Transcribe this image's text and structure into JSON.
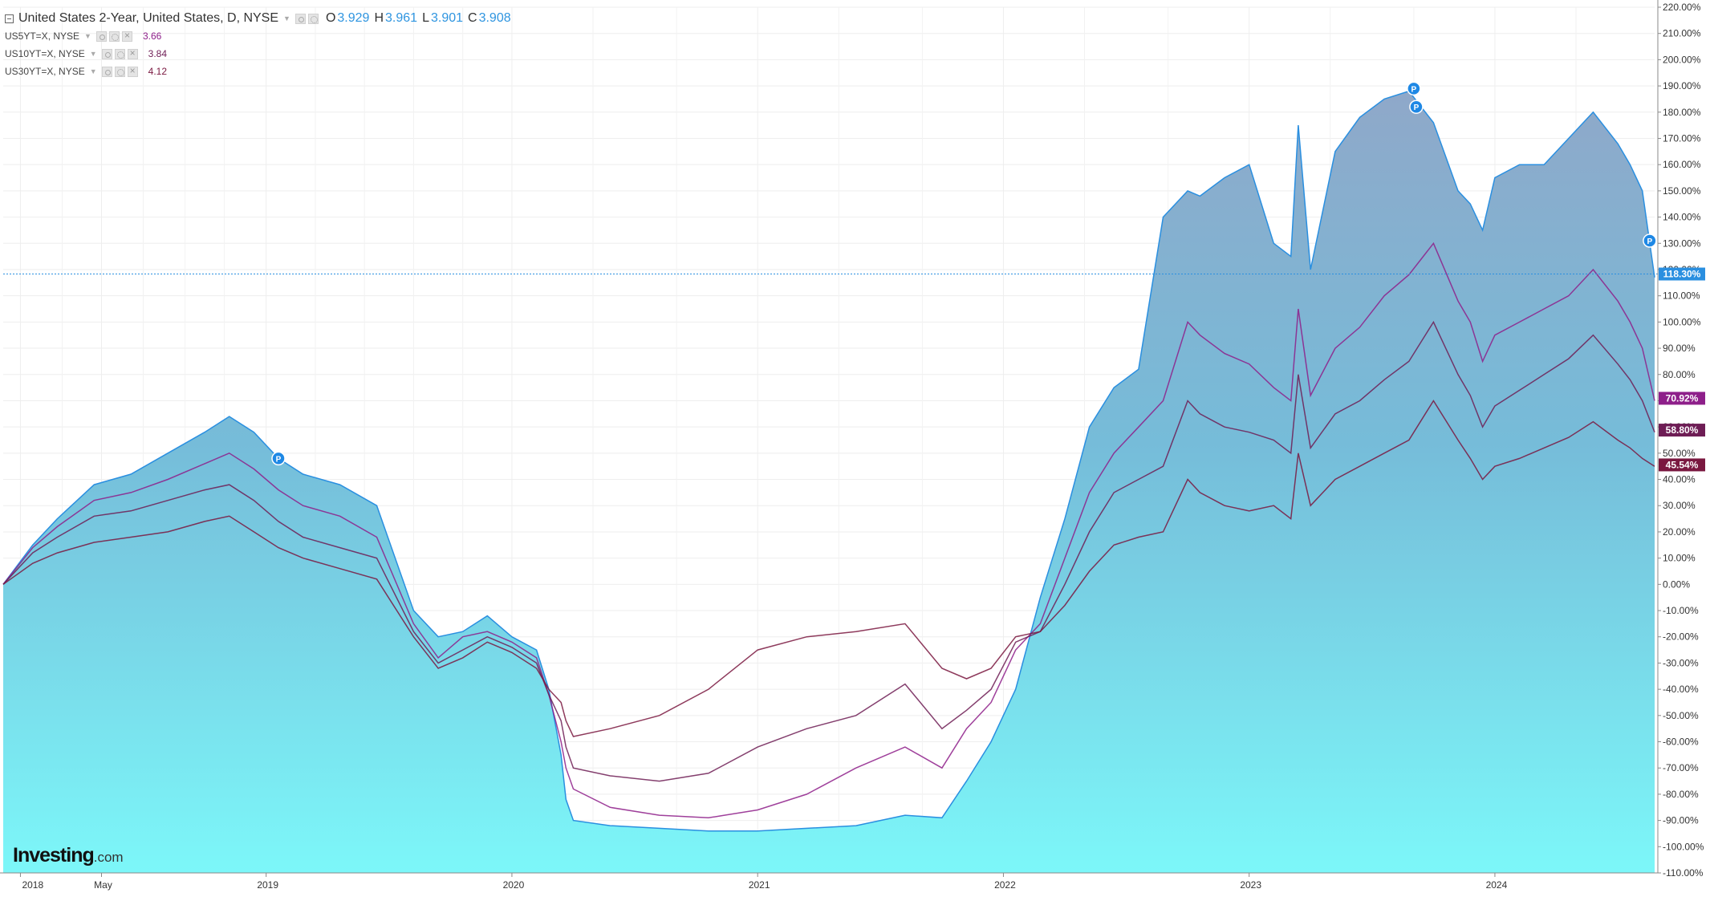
{
  "legend": {
    "main": {
      "title": "United States 2-Year, United States, D, NYSE",
      "o_label": "O",
      "o_value": "3.929",
      "h_label": "H",
      "h_value": "3.961",
      "l_label": "L",
      "l_value": "3.901",
      "c_label": "C",
      "c_value": "3.908"
    },
    "series": [
      {
        "label": "US5YT=X, NYSE",
        "value": "3.66",
        "color": "#8e1f8a"
      },
      {
        "label": "US10YT=X, NYSE",
        "value": "3.84",
        "color": "#6e1d55"
      },
      {
        "label": "US30YT=X, NYSE",
        "value": "4.12",
        "color": "#7a1840"
      }
    ]
  },
  "logo": {
    "brand": "Investing",
    "suffix": ".com"
  },
  "chart_data": {
    "type": "area",
    "y_unit": "%",
    "ylim": [
      -110,
      220
    ],
    "y_ticks": [
      220,
      210,
      200,
      190,
      180,
      170,
      160,
      150,
      140,
      130,
      120,
      110,
      100,
      90,
      80,
      70,
      60,
      50,
      40,
      30,
      20,
      10,
      0,
      -10,
      -20,
      -30,
      -40,
      -50,
      -60,
      -70,
      -80,
      -90,
      -100,
      -110
    ],
    "x_range": [
      2017.93,
      2024.65
    ],
    "x_ticks": [
      {
        "label": "2018",
        "x": 2018.0
      },
      {
        "label": "May",
        "x": 2018.33
      },
      {
        "label": "2019",
        "x": 2019.0
      },
      {
        "label": "2020",
        "x": 2020.0
      },
      {
        "label": "2021",
        "x": 2021.0
      },
      {
        "label": "2022",
        "x": 2022.0
      },
      {
        "label": "2023",
        "x": 2023.0
      },
      {
        "label": "2024",
        "x": 2024.0
      }
    ],
    "grid": true,
    "current_line": {
      "value": 118.3,
      "label": "118.30%"
    },
    "price_labels": [
      {
        "value": 70.92,
        "label": "70.92%",
        "color": "#8e1f8a"
      },
      {
        "value": 58.8,
        "label": "58.80%",
        "color": "#6e1d55"
      },
      {
        "value": 45.54,
        "label": "45.54%",
        "color": "#7a1840"
      }
    ],
    "markers": [
      {
        "x": 2019.05,
        "y": 48
      },
      {
        "x": 2023.67,
        "y": 189
      },
      {
        "x": 2023.68,
        "y": 182
      },
      {
        "x": 2024.63,
        "y": 131
      }
    ],
    "series": [
      {
        "name": "United States 2-Year",
        "style": "area",
        "color": "#2a8fe0",
        "x": [
          2017.93,
          2018.05,
          2018.15,
          2018.3,
          2018.45,
          2018.6,
          2018.75,
          2018.85,
          2018.95,
          2019.05,
          2019.15,
          2019.3,
          2019.45,
          2019.6,
          2019.7,
          2019.8,
          2019.9,
          2020.0,
          2020.1,
          2020.15,
          2020.2,
          2020.22,
          2020.25,
          2020.4,
          2020.6,
          2020.8,
          2021.0,
          2021.2,
          2021.4,
          2021.6,
          2021.75,
          2021.85,
          2021.95,
          2022.05,
          2022.15,
          2022.25,
          2022.35,
          2022.45,
          2022.55,
          2022.65,
          2022.75,
          2022.8,
          2022.9,
          2023.0,
          2023.1,
          2023.17,
          2023.2,
          2023.25,
          2023.35,
          2023.45,
          2023.55,
          2023.65,
          2023.75,
          2023.85,
          2023.9,
          2023.95,
          2024.0,
          2024.1,
          2024.2,
          2024.3,
          2024.4,
          2024.5,
          2024.55,
          2024.6,
          2024.65
        ],
        "y": [
          0,
          15,
          25,
          38,
          42,
          50,
          58,
          64,
          58,
          48,
          42,
          38,
          30,
          -10,
          -20,
          -18,
          -12,
          -20,
          -25,
          -40,
          -65,
          -82,
          -90,
          -92,
          -93,
          -94,
          -94,
          -93,
          -92,
          -88,
          -89,
          -75,
          -60,
          -40,
          -5,
          25,
          60,
          75,
          82,
          140,
          150,
          148,
          155,
          160,
          130,
          125,
          175,
          120,
          165,
          178,
          185,
          188,
          176,
          150,
          145,
          135,
          155,
          160,
          160,
          170,
          180,
          168,
          160,
          150,
          117
        ]
      },
      {
        "name": "US5YT=X, NYSE",
        "style": "line",
        "color": "#8e1f8a",
        "x": [
          2017.93,
          2018.05,
          2018.15,
          2018.3,
          2018.45,
          2018.6,
          2018.75,
          2018.85,
          2018.95,
          2019.05,
          2019.15,
          2019.3,
          2019.45,
          2019.6,
          2019.7,
          2019.8,
          2019.9,
          2020.0,
          2020.1,
          2020.15,
          2020.2,
          2020.22,
          2020.25,
          2020.4,
          2020.6,
          2020.8,
          2021.0,
          2021.2,
          2021.4,
          2021.6,
          2021.75,
          2021.85,
          2021.95,
          2022.05,
          2022.15,
          2022.25,
          2022.35,
          2022.45,
          2022.55,
          2022.65,
          2022.75,
          2022.8,
          2022.9,
          2023.0,
          2023.1,
          2023.17,
          2023.2,
          2023.25,
          2023.35,
          2023.45,
          2023.55,
          2023.65,
          2023.75,
          2023.85,
          2023.9,
          2023.95,
          2024.0,
          2024.1,
          2024.2,
          2024.3,
          2024.4,
          2024.5,
          2024.55,
          2024.6,
          2024.65
        ],
        "y": [
          0,
          14,
          22,
          32,
          35,
          40,
          46,
          50,
          44,
          36,
          30,
          26,
          18,
          -15,
          -28,
          -20,
          -18,
          -22,
          -28,
          -42,
          -60,
          -70,
          -78,
          -85,
          -88,
          -89,
          -86,
          -80,
          -70,
          -62,
          -70,
          -55,
          -45,
          -25,
          -15,
          10,
          35,
          50,
          60,
          70,
          100,
          95,
          88,
          84,
          75,
          70,
          105,
          72,
          90,
          98,
          110,
          118,
          130,
          108,
          100,
          85,
          95,
          100,
          105,
          110,
          120,
          108,
          100,
          90,
          70
        ]
      },
      {
        "name": "US10YT=X, NYSE",
        "style": "line",
        "color": "#6e1d55",
        "x": [
          2017.93,
          2018.05,
          2018.15,
          2018.3,
          2018.45,
          2018.6,
          2018.75,
          2018.85,
          2018.95,
          2019.05,
          2019.15,
          2019.3,
          2019.45,
          2019.6,
          2019.7,
          2019.8,
          2019.9,
          2020.0,
          2020.1,
          2020.15,
          2020.2,
          2020.22,
          2020.25,
          2020.4,
          2020.6,
          2020.8,
          2021.0,
          2021.2,
          2021.4,
          2021.6,
          2021.75,
          2021.85,
          2021.95,
          2022.05,
          2022.15,
          2022.25,
          2022.35,
          2022.45,
          2022.55,
          2022.65,
          2022.75,
          2022.8,
          2022.9,
          2023.0,
          2023.1,
          2023.17,
          2023.2,
          2023.25,
          2023.35,
          2023.45,
          2023.55,
          2023.65,
          2023.75,
          2023.85,
          2023.9,
          2023.95,
          2024.0,
          2024.1,
          2024.2,
          2024.3,
          2024.4,
          2024.5,
          2024.55,
          2024.6,
          2024.65
        ],
        "y": [
          0,
          12,
          18,
          26,
          28,
          32,
          36,
          38,
          32,
          24,
          18,
          14,
          10,
          -18,
          -30,
          -25,
          -20,
          -24,
          -30,
          -42,
          -52,
          -62,
          -70,
          -73,
          -75,
          -72,
          -62,
          -55,
          -50,
          -38,
          -55,
          -48,
          -40,
          -22,
          -18,
          0,
          20,
          35,
          40,
          45,
          70,
          65,
          60,
          58,
          55,
          50,
          80,
          52,
          65,
          70,
          78,
          85,
          100,
          80,
          72,
          60,
          68,
          74,
          80,
          86,
          95,
          84,
          78,
          70,
          58
        ]
      },
      {
        "name": "US30YT=X, NYSE",
        "style": "line",
        "color": "#7a1840",
        "x": [
          2017.93,
          2018.05,
          2018.15,
          2018.3,
          2018.45,
          2018.6,
          2018.75,
          2018.85,
          2018.95,
          2019.05,
          2019.15,
          2019.3,
          2019.45,
          2019.6,
          2019.7,
          2019.8,
          2019.9,
          2020.0,
          2020.1,
          2020.15,
          2020.2,
          2020.22,
          2020.25,
          2020.4,
          2020.6,
          2020.8,
          2021.0,
          2021.2,
          2021.4,
          2021.6,
          2021.75,
          2021.85,
          2021.95,
          2022.05,
          2022.15,
          2022.25,
          2022.35,
          2022.45,
          2022.55,
          2022.65,
          2022.75,
          2022.8,
          2022.9,
          2023.0,
          2023.1,
          2023.17,
          2023.2,
          2023.25,
          2023.35,
          2023.45,
          2023.55,
          2023.65,
          2023.75,
          2023.85,
          2023.9,
          2023.95,
          2024.0,
          2024.1,
          2024.2,
          2024.3,
          2024.4,
          2024.5,
          2024.55,
          2024.6,
          2024.65
        ],
        "y": [
          0,
          8,
          12,
          16,
          18,
          20,
          24,
          26,
          20,
          14,
          10,
          6,
          2,
          -20,
          -32,
          -28,
          -22,
          -26,
          -32,
          -40,
          -45,
          -52,
          -58,
          -55,
          -50,
          -40,
          -25,
          -20,
          -18,
          -15,
          -32,
          -36,
          -32,
          -20,
          -18,
          -8,
          5,
          15,
          18,
          20,
          40,
          35,
          30,
          28,
          30,
          25,
          50,
          30,
          40,
          45,
          50,
          55,
          70,
          55,
          48,
          40,
          45,
          48,
          52,
          56,
          62,
          55,
          52,
          48,
          45
        ]
      }
    ]
  }
}
